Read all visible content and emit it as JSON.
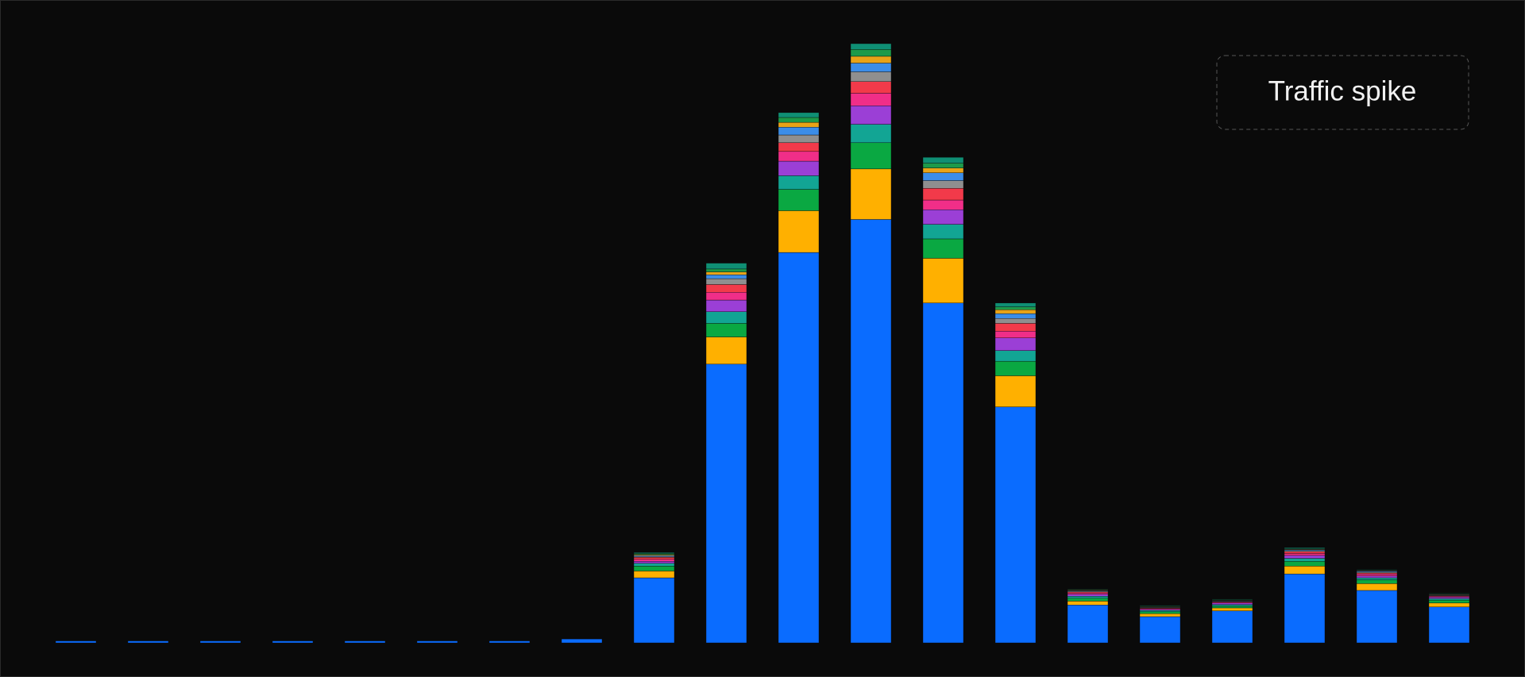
{
  "chart_data": {
    "type": "stacked-bar",
    "annotation": "Traffic spike",
    "ylim": [
      0,
      617
    ],
    "series": [
      {
        "color": "#0a6cff",
        "values": [
          2,
          2,
          2,
          2,
          2,
          2,
          2,
          4,
          67,
          287,
          402,
          436,
          350,
          243,
          39,
          27,
          33,
          71,
          54,
          37
        ]
      },
      {
        "color": "#ffb000",
        "values": [
          0,
          0,
          0,
          0,
          0,
          0,
          0,
          0,
          7,
          28,
          43,
          52,
          46,
          32,
          4,
          3,
          3,
          8,
          7,
          4
        ]
      },
      {
        "color": "#0aa842",
        "values": [
          0,
          0,
          0,
          0,
          0,
          0,
          0,
          0,
          5,
          14,
          22,
          27,
          20,
          15,
          3,
          2,
          2,
          5,
          4,
          3
        ]
      },
      {
        "color": "#12a594",
        "values": [
          0,
          0,
          0,
          0,
          0,
          0,
          0,
          0,
          3,
          12,
          14,
          19,
          15,
          11,
          2,
          1.5,
          1.5,
          3,
          2,
          1.5
        ]
      },
      {
        "color": "#9b3fd6",
        "values": [
          0,
          0,
          0,
          0,
          0,
          0,
          0,
          0,
          2,
          12,
          15,
          19,
          15,
          13,
          2,
          1,
          1.5,
          3,
          2,
          1.5
        ]
      },
      {
        "color": "#f02e88",
        "values": [
          0,
          0,
          0,
          0,
          0,
          0,
          0,
          0,
          2,
          8,
          10,
          13,
          10,
          7,
          1.5,
          1,
          1,
          2,
          2,
          1
        ]
      },
      {
        "color": "#f23a4a",
        "values": [
          0,
          0,
          0,
          0,
          0,
          0,
          0,
          0,
          2,
          8,
          9,
          12,
          12,
          8,
          1,
          0.5,
          0.5,
          2,
          1,
          0.5
        ]
      },
      {
        "color": "#8f8f8f",
        "values": [
          0,
          0,
          0,
          0,
          0,
          0,
          0,
          0,
          1,
          6,
          8,
          10,
          8,
          5,
          1,
          0.5,
          0.5,
          1,
          1,
          0.5
        ]
      },
      {
        "color": "#3b8de8",
        "values": [
          0,
          0,
          0,
          0,
          0,
          0,
          0,
          0,
          1,
          4,
          8,
          9,
          8,
          5,
          0.5,
          0.5,
          0.5,
          1,
          1,
          0.5
        ]
      },
      {
        "color": "#e8a317",
        "values": [
          0,
          0,
          0,
          0,
          0,
          0,
          0,
          0,
          1,
          3,
          5,
          7,
          5,
          4,
          0.5,
          0.5,
          0.5,
          0.5,
          0.5,
          0.5
        ]
      },
      {
        "color": "#1d9a4a",
        "values": [
          0,
          0,
          0,
          0,
          0,
          0,
          0,
          0,
          1,
          3,
          5,
          7,
          5,
          3,
          0.5,
          0.5,
          0.5,
          0.5,
          0.5,
          0.5
        ]
      },
      {
        "color": "#0f8f74",
        "values": [
          0,
          0,
          0,
          0,
          0,
          0,
          0,
          0,
          1,
          6,
          5,
          6,
          6,
          4,
          0.5,
          0.5,
          0.5,
          1,
          0.5,
          0.5
        ]
      }
    ]
  }
}
